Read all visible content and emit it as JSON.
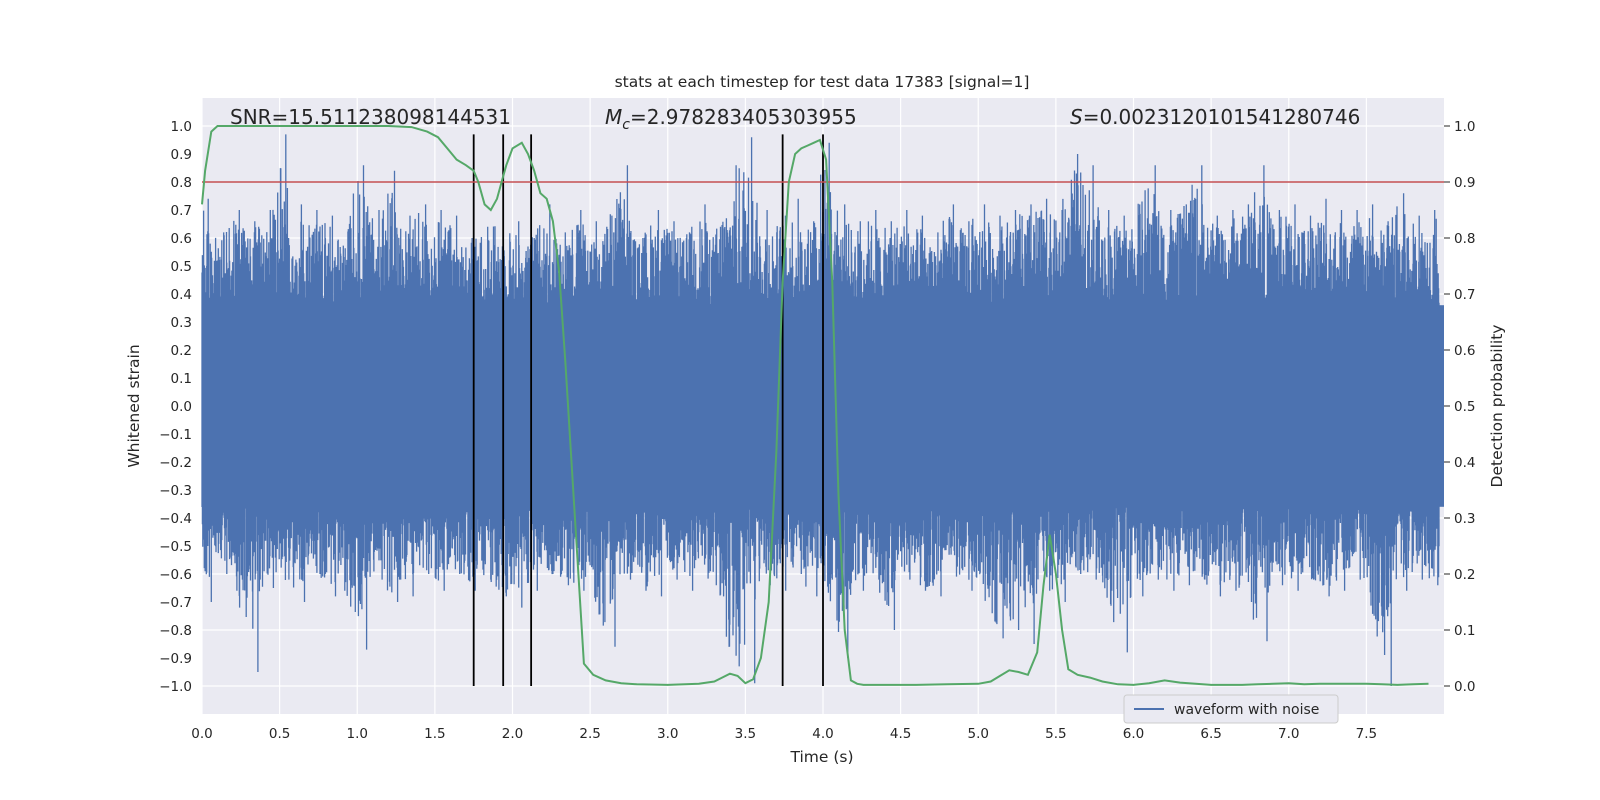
{
  "chart_data": {
    "type": "line",
    "title": "stats at each timestep for test data 17383 [signal=1]",
    "xlabel": "Time (s)",
    "ylabel_left": "Whitened strain",
    "ylabel_right": "Detection probability",
    "xlim": [
      0.0,
      8.0
    ],
    "ylim_left": [
      -1.1,
      1.1
    ],
    "ylim_right": [
      -0.05,
      1.05
    ],
    "x_ticks": [
      "0.0",
      "0.5",
      "1.0",
      "1.5",
      "2.0",
      "2.5",
      "3.0",
      "3.5",
      "4.0",
      "4.5",
      "5.0",
      "5.5",
      "6.0",
      "6.5",
      "7.0",
      "7.5"
    ],
    "x_tick_values": [
      0.0,
      0.5,
      1.0,
      1.5,
      2.0,
      2.5,
      3.0,
      3.5,
      4.0,
      4.5,
      5.0,
      5.5,
      6.0,
      6.5,
      7.0,
      7.5
    ],
    "y_left_ticks": [
      "1.0",
      "0.9",
      "0.8",
      "0.7",
      "0.6",
      "0.5",
      "0.4",
      "0.3",
      "0.2",
      "0.1",
      "0.0",
      "−0.1",
      "−0.2",
      "−0.3",
      "−0.4",
      "−0.5",
      "−0.6",
      "−0.7",
      "−0.8",
      "−0.9",
      "−1.0"
    ],
    "y_left_tick_values": [
      1.0,
      0.9,
      0.8,
      0.7,
      0.6,
      0.5,
      0.4,
      0.3,
      0.2,
      0.1,
      0.0,
      -0.1,
      -0.2,
      -0.3,
      -0.4,
      -0.5,
      -0.6,
      -0.7,
      -0.8,
      -0.9,
      -1.0
    ],
    "y_right_ticks": [
      "1.0",
      "0.9",
      "0.8",
      "0.7",
      "0.6",
      "0.5",
      "0.4",
      "0.3",
      "0.2",
      "0.1",
      "0.0"
    ],
    "y_right_tick_values": [
      1.0,
      0.9,
      0.8,
      0.7,
      0.6,
      0.5,
      0.4,
      0.3,
      0.2,
      0.1,
      0.0
    ],
    "annotations": {
      "snr": "SNR=15.511238098144531",
      "mc_label": "M",
      "mc_sub": "c",
      "mc_value": "=2.978283405303955",
      "s_label": "S",
      "s_value": "=0.002312010154128074​6"
    },
    "threshold": {
      "value": 0.9,
      "axis": "right",
      "color": "#c44e52"
    },
    "vertical_markers": [
      1.75,
      1.94,
      2.12,
      3.74,
      4.0
    ],
    "series": [
      {
        "name": "waveform with noise",
        "axis": "left",
        "color": "#4c72b0",
        "envelope_times": [
          0.0,
          0.1,
          0.2,
          0.3,
          0.4,
          0.5,
          0.6,
          0.7,
          0.8,
          0.9,
          1.0,
          1.1,
          1.2,
          1.3,
          1.4,
          1.5,
          1.6,
          1.7,
          1.8,
          1.9,
          2.0,
          2.1,
          2.2,
          2.3,
          2.4,
          2.5,
          2.6,
          2.7,
          2.8,
          2.9,
          3.0,
          3.1,
          3.2,
          3.3,
          3.4,
          3.5,
          3.6,
          3.7,
          3.8,
          3.9,
          4.0,
          4.1,
          4.2,
          4.3,
          4.4,
          4.5,
          4.6,
          4.7,
          4.8,
          4.9,
          5.0,
          5.1,
          5.2,
          5.3,
          5.4,
          5.5,
          5.6,
          5.7,
          5.8,
          5.9,
          6.0,
          6.1,
          6.2,
          6.3,
          6.4,
          6.5,
          6.6,
          6.7,
          6.8,
          6.9,
          7.0,
          7.1,
          7.2,
          7.3,
          7.4,
          7.5,
          7.6,
          7.7,
          7.8,
          7.9,
          8.0
        ],
        "envelope_max": [
          0.74,
          0.62,
          0.7,
          0.66,
          0.7,
          0.97,
          0.72,
          0.7,
          0.68,
          0.62,
          0.86,
          0.7,
          0.84,
          0.68,
          0.72,
          0.7,
          0.68,
          0.6,
          0.64,
          0.68,
          0.66,
          0.6,
          0.72,
          0.62,
          0.7,
          0.66,
          0.68,
          0.86,
          0.6,
          0.7,
          0.66,
          0.62,
          0.72,
          0.64,
          0.86,
          0.96,
          0.7,
          0.68,
          0.74,
          0.66,
          0.94,
          0.72,
          0.66,
          0.7,
          0.66,
          0.7,
          0.68,
          0.62,
          0.72,
          0.66,
          0.72,
          0.68,
          0.7,
          0.72,
          0.74,
          0.7,
          0.9,
          0.86,
          0.7,
          0.68,
          0.72,
          0.86,
          0.7,
          0.72,
          0.86,
          0.68,
          0.7,
          0.72,
          0.86,
          0.7,
          0.72,
          0.68,
          0.74,
          0.7,
          0.7,
          0.72,
          0.66,
          0.76,
          0.68,
          0.7,
          0.74
        ],
        "envelope_min": [
          -0.7,
          -0.6,
          -0.62,
          -0.95,
          -0.65,
          -0.62,
          -0.7,
          -0.6,
          -0.68,
          -0.64,
          -0.87,
          -0.62,
          -0.7,
          -0.68,
          -0.6,
          -0.66,
          -0.6,
          -0.66,
          -0.62,
          -0.68,
          -0.72,
          -0.66,
          -0.6,
          -0.64,
          -0.66,
          -0.7,
          -0.86,
          -0.62,
          -0.66,
          -0.68,
          -0.62,
          -0.66,
          -0.6,
          -0.68,
          -0.93,
          -0.99,
          -0.64,
          -0.66,
          -0.6,
          -0.68,
          -0.62,
          -0.9,
          -0.66,
          -0.62,
          -0.8,
          -0.62,
          -0.66,
          -0.68,
          -0.6,
          -0.66,
          -0.64,
          -0.83,
          -0.8,
          -0.85,
          -0.66,
          -0.7,
          -0.6,
          -0.62,
          -0.66,
          -0.88,
          -0.68,
          -0.62,
          -0.66,
          -0.64,
          -0.62,
          -0.68,
          -0.66,
          -0.7,
          -0.84,
          -0.64,
          -0.66,
          -0.62,
          -0.68,
          -0.66,
          -0.62,
          -0.64,
          -1.0,
          -0.66,
          -0.62,
          -0.64,
          -0.66
        ],
        "body_level": 0.36
      },
      {
        "name": "detection probability",
        "axis": "right",
        "color": "#55a868",
        "x": [
          0.0,
          0.02,
          0.06,
          0.1,
          0.15,
          0.3,
          0.6,
          0.9,
          1.2,
          1.35,
          1.45,
          1.52,
          1.58,
          1.64,
          1.7,
          1.75,
          1.78,
          1.82,
          1.86,
          1.9,
          1.93,
          1.96,
          2.0,
          2.06,
          2.1,
          2.14,
          2.18,
          2.22,
          2.26,
          2.3,
          2.34,
          2.38,
          2.42,
          2.46,
          2.52,
          2.6,
          2.7,
          2.8,
          3.0,
          3.2,
          3.3,
          3.35,
          3.4,
          3.45,
          3.5,
          3.55,
          3.6,
          3.65,
          3.7,
          3.74,
          3.78,
          3.82,
          3.86,
          3.9,
          3.94,
          3.98,
          4.02,
          4.06,
          4.1,
          4.14,
          4.18,
          4.22,
          4.26,
          4.3,
          4.4,
          4.6,
          4.8,
          5.0,
          5.08,
          5.14,
          5.2,
          5.26,
          5.32,
          5.38,
          5.42,
          5.46,
          5.5,
          5.54,
          5.58,
          5.64,
          5.72,
          5.8,
          5.9,
          6.0,
          6.1,
          6.2,
          6.3,
          6.4,
          6.5,
          6.6,
          6.7,
          6.8,
          6.9,
          7.0,
          7.1,
          7.2,
          7.3,
          7.4,
          7.5,
          7.6,
          7.7,
          7.8,
          7.9
        ],
        "y": [
          0.86,
          0.92,
          0.99,
          1.0,
          1.0,
          1.0,
          1.0,
          1.0,
          1.0,
          0.998,
          0.99,
          0.98,
          0.96,
          0.94,
          0.93,
          0.92,
          0.9,
          0.86,
          0.85,
          0.87,
          0.9,
          0.93,
          0.96,
          0.97,
          0.95,
          0.92,
          0.88,
          0.87,
          0.83,
          0.74,
          0.58,
          0.4,
          0.22,
          0.04,
          0.02,
          0.01,
          0.005,
          0.003,
          0.002,
          0.004,
          0.008,
          0.015,
          0.022,
          0.018,
          0.005,
          0.012,
          0.05,
          0.15,
          0.42,
          0.72,
          0.9,
          0.95,
          0.96,
          0.965,
          0.97,
          0.975,
          0.94,
          0.72,
          0.34,
          0.1,
          0.01,
          0.004,
          0.002,
          0.002,
          0.002,
          0.002,
          0.003,
          0.004,
          0.008,
          0.018,
          0.028,
          0.025,
          0.02,
          0.06,
          0.18,
          0.27,
          0.2,
          0.1,
          0.03,
          0.02,
          0.015,
          0.008,
          0.003,
          0.002,
          0.005,
          0.01,
          0.006,
          0.004,
          0.002,
          0.002,
          0.002,
          0.003,
          0.004,
          0.005,
          0.003,
          0.004,
          0.004,
          0.004,
          0.004,
          0.003,
          0.002,
          0.003,
          0.004
        ]
      }
    ],
    "legend": {
      "label": "waveform with noise",
      "location": "lower-right"
    }
  }
}
